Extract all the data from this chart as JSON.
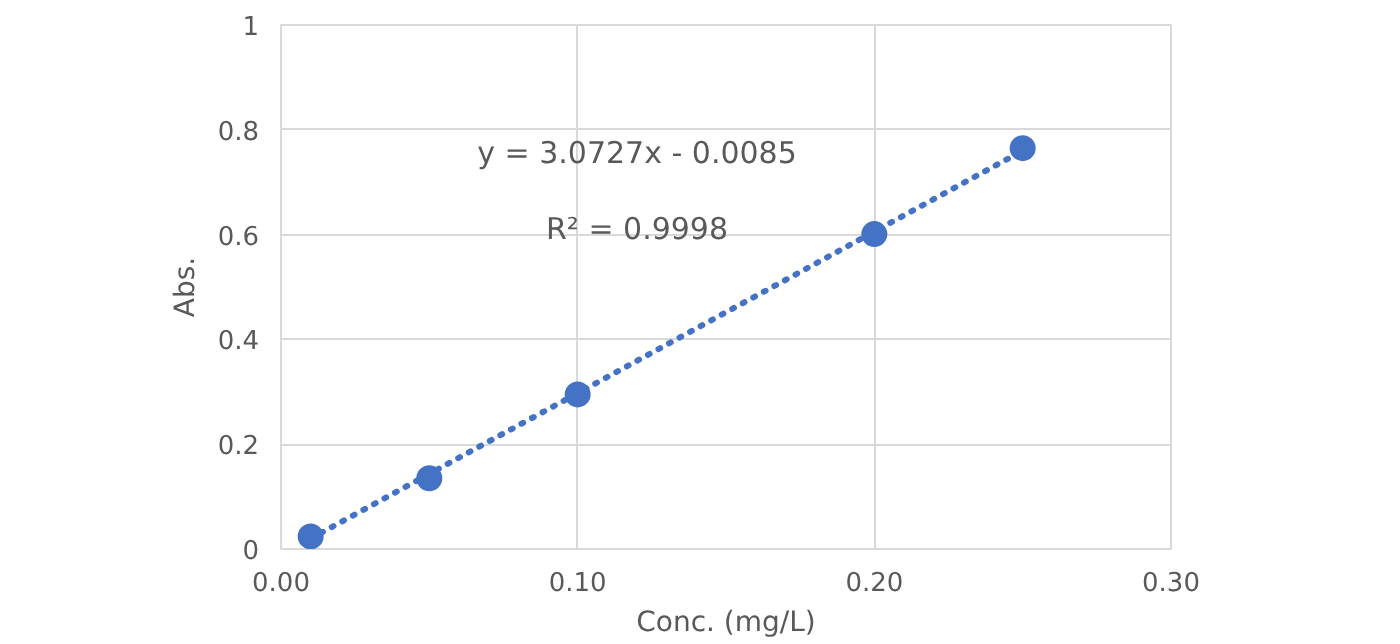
{
  "chart_data": {
    "type": "scatter",
    "xlabel": "Conc. (mg/L)",
    "ylabel": "Abs.",
    "x": [
      0.01,
      0.05,
      0.1,
      0.2,
      0.25
    ],
    "series": [
      {
        "color": "#4472c4",
        "values": [
          0.024,
          0.135,
          0.295,
          0.601,
          0.765
        ],
        "marker": "circle"
      },
      {
        "type": "line",
        "color": "#4472c4",
        "x": [
          0.01,
          0.25
        ],
        "values": [
          0.02,
          0.76
        ],
        "line_style": "dotted",
        "marker": "none"
      }
    ],
    "annotations": [
      "y = 3.0727x - 0.0085",
      "R² = 0.9998"
    ],
    "xlim": [
      0,
      0.3
    ],
    "xticks": [
      {
        "value": 0,
        "label": "0.00"
      },
      {
        "value": 0.1,
        "label": "0.10"
      },
      {
        "value": 0.2,
        "label": "0.20"
      },
      {
        "value": 0.3,
        "label": "0.30"
      }
    ],
    "ylim": [
      0,
      1
    ],
    "yticks": [
      0,
      0.2,
      0.4,
      0.6,
      0.8,
      1
    ],
    "grid": true
  }
}
